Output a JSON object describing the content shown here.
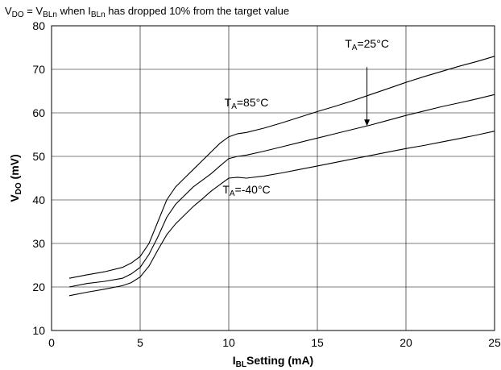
{
  "chart_data": {
    "type": "line",
    "note": {
      "a_main": "V",
      "a_sub": "DO",
      "b_main": " = V",
      "b_sub": "BLn",
      "c_main": " when I",
      "c_sub": "BLn",
      "d_main": " has dropped 10% from the target value"
    },
    "xlabel": {
      "main": "I",
      "sub": "BL",
      "rest": "Setting (mA)"
    },
    "ylabel": {
      "main": "V",
      "sub": "DO",
      "rest": " (mV)"
    },
    "xlim": [
      0,
      25
    ],
    "ylim": [
      10,
      80
    ],
    "xticks": [
      0,
      5,
      10,
      15,
      20,
      25
    ],
    "yticks": [
      10,
      20,
      30,
      40,
      50,
      60,
      70,
      80
    ],
    "grid": true,
    "series": [
      {
        "name": "TA=85°C",
        "points": [
          [
            1,
            22
          ],
          [
            2,
            22.8
          ],
          [
            3,
            23.5
          ],
          [
            4,
            24.5
          ],
          [
            4.5,
            25.5
          ],
          [
            5,
            27
          ],
          [
            5.5,
            30
          ],
          [
            6,
            35
          ],
          [
            6.5,
            40
          ],
          [
            7,
            43
          ],
          [
            7.5,
            45
          ],
          [
            8,
            47
          ],
          [
            8.5,
            49
          ],
          [
            9,
            51
          ],
          [
            9.5,
            53
          ],
          [
            10,
            54.5
          ],
          [
            10.5,
            55.2
          ],
          [
            11,
            55.5
          ],
          [
            12,
            56.5
          ],
          [
            13,
            57.7
          ],
          [
            14,
            59
          ],
          [
            15,
            60.3
          ],
          [
            16,
            61.5
          ],
          [
            17,
            62.8
          ],
          [
            18,
            64.2
          ],
          [
            19,
            65.6
          ],
          [
            20,
            67
          ],
          [
            21,
            68.3
          ],
          [
            22,
            69.5
          ],
          [
            23,
            70.7
          ],
          [
            24,
            71.8
          ],
          [
            25,
            73
          ]
        ]
      },
      {
        "name": "TA=25°C",
        "points": [
          [
            1,
            20
          ],
          [
            2,
            20.8
          ],
          [
            3,
            21.3
          ],
          [
            4,
            22
          ],
          [
            4.5,
            23
          ],
          [
            5,
            24.5
          ],
          [
            5.5,
            27.5
          ],
          [
            6,
            31.5
          ],
          [
            6.5,
            36
          ],
          [
            7,
            39
          ],
          [
            7.5,
            41
          ],
          [
            8,
            43
          ],
          [
            8.5,
            44.5
          ],
          [
            9,
            46
          ],
          [
            9.5,
            47.8
          ],
          [
            10,
            49.5
          ],
          [
            10.5,
            50
          ],
          [
            11,
            50.3
          ],
          [
            12,
            51.2
          ],
          [
            13,
            52.2
          ],
          [
            14,
            53.2
          ],
          [
            15,
            54.2
          ],
          [
            16,
            55.2
          ],
          [
            17,
            56.2
          ],
          [
            18,
            57.2
          ],
          [
            19,
            58.3
          ],
          [
            20,
            59.4
          ],
          [
            21,
            60.4
          ],
          [
            22,
            61.4
          ],
          [
            23,
            62.3
          ],
          [
            24,
            63.2
          ],
          [
            25,
            64.2
          ]
        ]
      },
      {
        "name": "TA=-40°C",
        "points": [
          [
            1,
            18
          ],
          [
            2,
            18.8
          ],
          [
            3,
            19.5
          ],
          [
            4,
            20.3
          ],
          [
            4.5,
            21
          ],
          [
            5,
            22.3
          ],
          [
            5.5,
            24.8
          ],
          [
            6,
            28.5
          ],
          [
            6.5,
            32
          ],
          [
            7,
            34.5
          ],
          [
            7.5,
            36.5
          ],
          [
            8,
            38.5
          ],
          [
            8.5,
            40.2
          ],
          [
            9,
            42
          ],
          [
            9.5,
            43.5
          ],
          [
            10,
            45
          ],
          [
            10.5,
            45.2
          ],
          [
            11,
            45
          ],
          [
            12,
            45.5
          ],
          [
            13,
            46.2
          ],
          [
            14,
            47
          ],
          [
            15,
            47.8
          ],
          [
            16,
            48.6
          ],
          [
            17,
            49.4
          ],
          [
            18,
            50.2
          ],
          [
            19,
            51
          ],
          [
            20,
            51.8
          ],
          [
            21,
            52.5
          ],
          [
            22,
            53.3
          ],
          [
            23,
            54.1
          ],
          [
            24,
            54.9
          ],
          [
            25,
            55.8
          ]
        ]
      }
    ],
    "annotations": [
      {
        "main": "T",
        "sub": "A",
        "rest": "=25°C",
        "at": [
          17.8,
          75
        ]
      },
      {
        "main": "T",
        "sub": "A",
        "rest": "=85°C",
        "at": [
          11.0,
          61.5
        ]
      },
      {
        "main": "T",
        "sub": "A",
        "rest": "=-40°C",
        "at": [
          11.0,
          41.5
        ]
      }
    ],
    "arrow": {
      "from": [
        17.8,
        70.5
      ],
      "to": [
        17.8,
        57.0
      ]
    }
  }
}
